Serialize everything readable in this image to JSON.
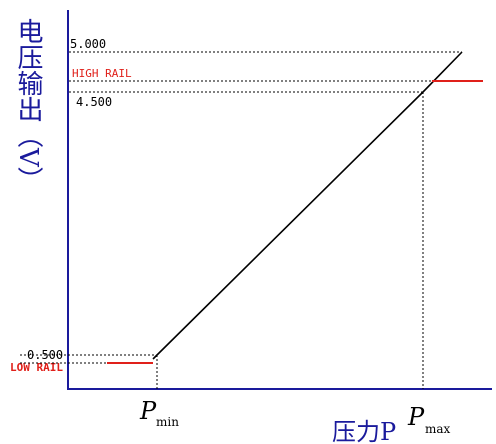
{
  "chart_data": {
    "type": "line",
    "ylabel": "电压输出（V）",
    "xlabel": "压力P",
    "x_ticks": [
      {
        "symbol": "P",
        "subscript": "min"
      },
      {
        "symbol": "P",
        "subscript": "max"
      }
    ],
    "y_ticks": [
      "5.000",
      "4.500",
      "0.500"
    ],
    "rail_labels": {
      "high": "HIGH RAIL",
      "low": "LOW RAIL"
    },
    "series": [
      {
        "values": [
          {
            "x": "P_min",
            "y": 0.5
          },
          {
            "x": "P_max",
            "y": 4.5
          }
        ]
      }
    ],
    "colors": {
      "axis": "#1a1a9c",
      "line": "#000000",
      "rail": "#e0201a",
      "ylabel": "#1a1a9c",
      "xlabel": "#1a1a9c",
      "tick_label": "#000000",
      "rail_label": "#e0201a"
    }
  }
}
